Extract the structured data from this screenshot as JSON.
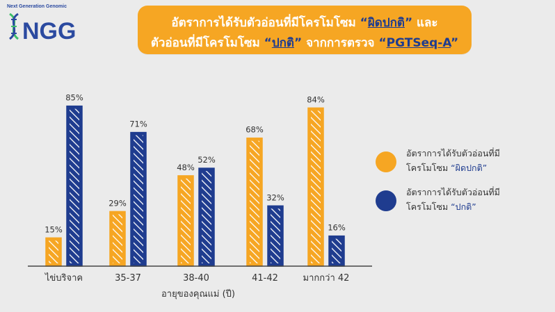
{
  "logo": {
    "tagline": "Next Generation Genomic",
    "mark": "NGG"
  },
  "title": {
    "line1_pre": "อัตราการได้รับตัวอ่อนที่มีโครโมโซม ",
    "line1_em": "ผิดปกติ",
    "line1_post": " และ",
    "line2_pre": "ตัวอ่อนที่มีโครโมโซม ",
    "line2_em": "ปกติ",
    "line2_mid": " จากการตรวจ ",
    "line2_em2": "PGTSeq-A",
    "open_quote": "“",
    "close_quote": "”"
  },
  "legend": [
    {
      "line1": "อัตราการได้รับตัวอ่อนที่มี",
      "line2_pre": "โครโมโซม ",
      "line2_hl": "“ผิดปกติ”",
      "color": "#f6a623"
    },
    {
      "line1": "อัตราการได้รับตัวอ่อนที่มี",
      "line2_pre": "โครโมโซม ",
      "line2_hl": "“ปกติ”",
      "color": "#1f3c8f"
    }
  ],
  "chart_data": {
    "type": "bar",
    "title": "อัตราการได้รับตัวอ่อนที่มีโครโมโซม “ผิดปกติ” และ ตัวอ่อนที่มีโครโมโซม “ปกติ” จากการตรวจ “PGTSeq-A”",
    "xlabel": "อายุของคุณแม่ (ปี)",
    "ylabel": "",
    "categories": [
      "ไข่บริจาค",
      "35-37",
      "38-40",
      "41-42",
      "มากกว่า 42"
    ],
    "series": [
      {
        "name": "อัตราการได้รับตัวอ่อนที่มีโครโมโซม “ผิดปกติ”",
        "values": [
          15,
          29,
          48,
          68,
          84
        ],
        "color": "#f6a623"
      },
      {
        "name": "อัตราการได้รับตัวอ่อนที่มีโครโมโซม “ปกติ”",
        "values": [
          85,
          71,
          52,
          32,
          16
        ],
        "color": "#1f3c8f"
      }
    ],
    "value_suffix": "%",
    "ylim": [
      0,
      100
    ],
    "grid": false,
    "legend_position": "right"
  }
}
